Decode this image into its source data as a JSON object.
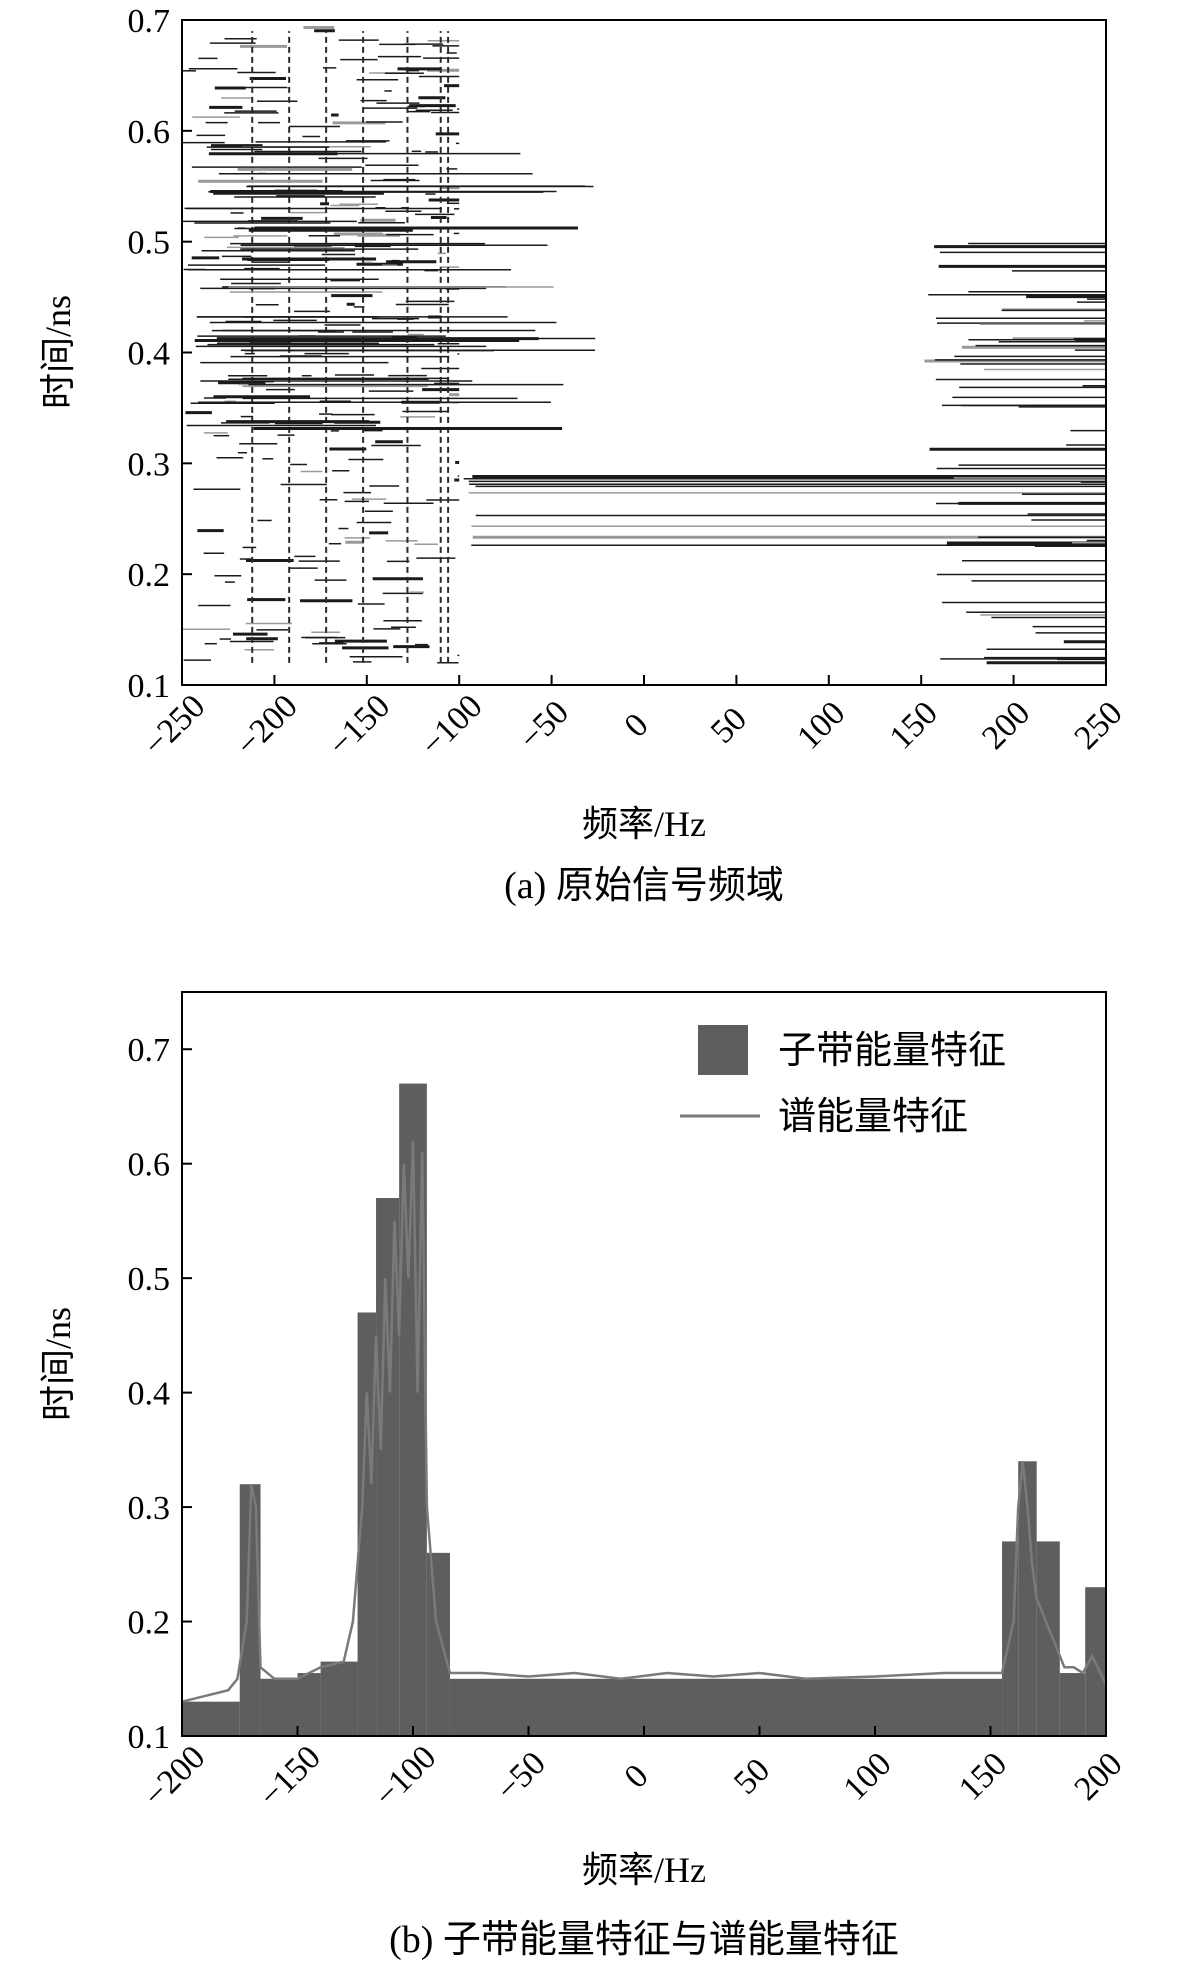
{
  "chart_data": [
    {
      "type": "heatmap",
      "panel_caption": "(a) 原始信号频域",
      "xlabel": "频率/Hz",
      "ylabel": "时间/ns",
      "xlim": [
        -250,
        250
      ],
      "ylim": [
        0.1,
        0.7
      ],
      "xticks": [
        "−250",
        "−200",
        "−150",
        "−100",
        "−50",
        "0",
        "50",
        "100",
        "150",
        "200",
        "250"
      ],
      "yticks": [
        "0.1",
        "0.2",
        "0.3",
        "0.4",
        "0.5",
        "0.6",
        "0.7"
      ],
      "grid": false,
      "colormap": "grayscale contour",
      "clusters": [
        {
          "x_range": [
            -250,
            -100
          ],
          "y_range": [
            0.12,
            0.7
          ],
          "density": "dense"
        },
        {
          "x_range": [
            -250,
            0
          ],
          "y_range": [
            0.33,
            0.59
          ],
          "density": "horizontal streaks"
        },
        {
          "x_range": [
            -100,
            250
          ],
          "y_range": [
            0.2,
            0.29
          ],
          "density": "horizontal lines"
        },
        {
          "x_range": [
            130,
            250
          ],
          "y_range": [
            0.12,
            0.5
          ],
          "density": "sparse streaks"
        }
      ]
    },
    {
      "type": "bar",
      "panel_caption": "(b) 子带能量特征与谱能量特征",
      "xlabel": "频率/Hz",
      "ylabel": "时间/ns",
      "xlim": [
        -200,
        200
      ],
      "ylim": [
        0.1,
        0.75
      ],
      "xticks": [
        "−200",
        "−150",
        "−100",
        "−50",
        "0",
        "50",
        "100",
        "150",
        "200"
      ],
      "yticks": [
        "0.1",
        "0.2",
        "0.3",
        "0.4",
        "0.5",
        "0.6",
        "0.7"
      ],
      "legend_position": "top-right",
      "legend": [
        "子带能量特征",
        "谱能量特征"
      ],
      "series": [
        {
          "name": "子带能量特征",
          "kind": "bar",
          "bars": [
            {
              "x0": -200,
              "x1": -175,
              "value": 0.13
            },
            {
              "x0": -175,
              "x1": -166,
              "value": 0.32
            },
            {
              "x0": -166,
              "x1": -150,
              "value": 0.15
            },
            {
              "x0": -150,
              "x1": -140,
              "value": 0.155
            },
            {
              "x0": -140,
              "x1": -124,
              "value": 0.165
            },
            {
              "x0": -124,
              "x1": -116,
              "value": 0.47
            },
            {
              "x0": -116,
              "x1": -106,
              "value": 0.57
            },
            {
              "x0": -106,
              "x1": -94,
              "value": 0.67
            },
            {
              "x0": -94,
              "x1": -84,
              "value": 0.26
            },
            {
              "x0": -84,
              "x1": 155,
              "value": 0.15
            },
            {
              "x0": 155,
              "x1": 162,
              "value": 0.27
            },
            {
              "x0": 162,
              "x1": 170,
              "value": 0.34
            },
            {
              "x0": 170,
              "x1": 180,
              "value": 0.27
            },
            {
              "x0": 180,
              "x1": 191,
              "value": 0.155
            },
            {
              "x0": 191,
              "x1": 200,
              "value": 0.23
            }
          ]
        },
        {
          "name": "谱能量特征",
          "kind": "line",
          "x": [
            -200,
            -190,
            -180,
            -176,
            -172,
            -170,
            -168,
            -166,
            -160,
            -150,
            -140,
            -130,
            -126,
            -122,
            -120,
            -118,
            -116,
            -114,
            -112,
            -110,
            -108,
            -106,
            -104,
            -102,
            -100,
            -98,
            -96,
            -94,
            -90,
            -86,
            -84,
            -70,
            -50,
            -30,
            -10,
            10,
            30,
            50,
            70,
            100,
            130,
            155,
            160,
            162,
            164,
            166,
            168,
            170,
            174,
            178,
            182,
            186,
            190,
            194,
            200
          ],
          "y": [
            0.13,
            0.135,
            0.14,
            0.15,
            0.2,
            0.32,
            0.3,
            0.16,
            0.15,
            0.15,
            0.16,
            0.165,
            0.2,
            0.3,
            0.4,
            0.32,
            0.45,
            0.35,
            0.5,
            0.4,
            0.55,
            0.45,
            0.6,
            0.5,
            0.62,
            0.4,
            0.61,
            0.3,
            0.2,
            0.17,
            0.155,
            0.155,
            0.152,
            0.155,
            0.15,
            0.155,
            0.152,
            0.155,
            0.15,
            0.152,
            0.155,
            0.155,
            0.2,
            0.3,
            0.34,
            0.3,
            0.25,
            0.22,
            0.2,
            0.18,
            0.16,
            0.16,
            0.155,
            0.17,
            0.145
          ]
        }
      ]
    }
  ]
}
